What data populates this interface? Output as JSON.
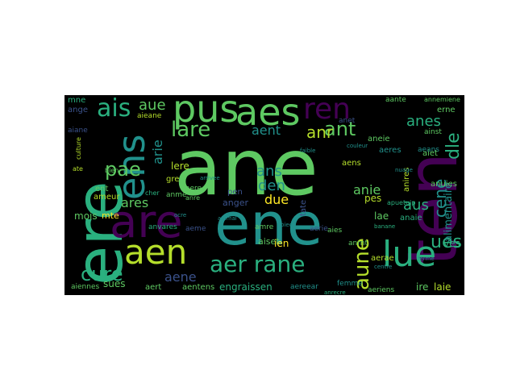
{
  "wordcloud": {
    "background": "#000000",
    "palette": [
      "#440154",
      "#3b528b",
      "#21918c",
      "#2ab07f",
      "#5ec962",
      "#b5de2b",
      "#fde725"
    ],
    "words": [
      {
        "text": "ane",
        "color": "#5ec962",
        "vertical": false
      },
      {
        "text": "ene",
        "color": "#21918c",
        "vertical": false
      },
      {
        "text": "ten",
        "color": "#440154",
        "vertical": true
      },
      {
        "text": "ere",
        "color": "#2ab07f",
        "vertical": true
      },
      {
        "text": "are",
        "color": "#440154",
        "vertical": false
      },
      {
        "text": "aes",
        "color": "#5ec962",
        "vertical": false
      },
      {
        "text": "pus",
        "color": "#5ec962",
        "vertical": false
      },
      {
        "text": "ren",
        "color": "#440154",
        "vertical": false
      },
      {
        "text": "lue",
        "color": "#2ab07f",
        "vertical": false
      },
      {
        "text": "aen",
        "color": "#b5de2b",
        "vertical": false
      },
      {
        "text": "ens",
        "color": "#21918c",
        "vertical": true
      },
      {
        "text": "ais",
        "color": "#2ab07f",
        "vertical": false
      },
      {
        "text": "aer rane",
        "color": "#2ab07f",
        "vertical": false
      },
      {
        "text": "lare",
        "color": "#5ec962",
        "vertical": false
      },
      {
        "text": "ant",
        "color": "#5ec962",
        "vertical": false
      },
      {
        "text": "anr",
        "color": "#b5de2b",
        "vertical": false
      },
      {
        "text": "aue",
        "color": "#5ec962",
        "vertical": false
      },
      {
        "text": "aent",
        "color": "#21918c",
        "vertical": false
      },
      {
        "text": "cure",
        "color": "#2ab07f",
        "vertical": false
      },
      {
        "text": "pae",
        "color": "#5ec962",
        "vertical": false
      },
      {
        "text": "ares",
        "color": "#5ec962",
        "vertical": false
      },
      {
        "text": "ues",
        "color": "#2ab07f",
        "vertical": false
      },
      {
        "text": "aune",
        "color": "#b5de2b",
        "vertical": true
      },
      {
        "text": "anes",
        "color": "#2ab07f",
        "vertical": false
      },
      {
        "text": "aus",
        "color": "#2ab07f",
        "vertical": false
      },
      {
        "text": "dle",
        "color": "#2ab07f",
        "vertical": true
      },
      {
        "text": "cene",
        "color": "#21918c",
        "vertical": true
      },
      {
        "text": "ans",
        "color": "#21918c",
        "vertical": false
      },
      {
        "text": "den",
        "color": "#21918c",
        "vertical": false
      },
      {
        "text": "due",
        "color": "#fde725",
        "vertical": false
      },
      {
        "text": "anie",
        "color": "#5ec962",
        "vertical": false
      },
      {
        "text": "aene",
        "color": "#3b528b",
        "vertical": false
      },
      {
        "text": "engraissen",
        "color": "#2ab07f",
        "vertical": false
      },
      {
        "text": "aentens",
        "color": "#5ec962",
        "vertical": false
      },
      {
        "text": "sues",
        "color": "#5ec962",
        "vertical": false
      },
      {
        "text": "mois",
        "color": "#5ec962",
        "vertical": false
      },
      {
        "text": "mte",
        "color": "#fde725",
        "vertical": false
      },
      {
        "text": "ent",
        "color": "#5ec962",
        "vertical": false
      },
      {
        "text": "ameur",
        "color": "#b5de2b",
        "vertical": false
      },
      {
        "text": "aiennes",
        "color": "#5ec962",
        "vertical": false
      },
      {
        "text": "arie",
        "color": "#21918c",
        "vertical": true
      },
      {
        "text": "lere",
        "color": "#b5de2b",
        "vertical": false
      },
      {
        "text": "anger",
        "color": "#3b528b",
        "vertical": false
      },
      {
        "text": "pen",
        "color": "#3b528b",
        "vertical": false
      },
      {
        "text": "aiset",
        "color": "#5ec962",
        "vertical": false
      },
      {
        "text": "ien",
        "color": "#fde725",
        "vertical": false
      },
      {
        "text": "pes",
        "color": "#b5de2b",
        "vertical": false
      },
      {
        "text": "lae",
        "color": "#5ec962",
        "vertical": false
      },
      {
        "text": "aerae",
        "color": "#b5de2b",
        "vertical": false
      },
      {
        "text": "ire",
        "color": "#5ec962",
        "vertical": false
      },
      {
        "text": "laie",
        "color": "#b5de2b",
        "vertical": false
      },
      {
        "text": "ves",
        "color": "#2ab07f",
        "vertical": false
      },
      {
        "text": "anaie",
        "color": "#2ab07f",
        "vertical": false
      },
      {
        "text": "aeriens",
        "color": "#5ec962",
        "vertical": false
      },
      {
        "text": "aert",
        "color": "#5ec962",
        "vertical": false
      },
      {
        "text": "aeans",
        "color": "#21918c",
        "vertical": false
      },
      {
        "text": "aeres",
        "color": "#21918c",
        "vertical": false
      },
      {
        "text": "aneie",
        "color": "#5ec962",
        "vertical": false
      },
      {
        "text": "aens",
        "color": "#b5de2b",
        "vertical": false
      },
      {
        "text": "alimentaire",
        "color": "#21918c",
        "vertical": true
      },
      {
        "text": "anuies",
        "color": "#5ec962",
        "vertical": false
      },
      {
        "text": "aiet",
        "color": "#5ec962",
        "vertical": false
      },
      {
        "text": "ainst",
        "color": "#5ec962",
        "vertical": false
      },
      {
        "text": "anet",
        "color": "#3b528b",
        "vertical": false
      },
      {
        "text": "erne",
        "color": "#5ec962",
        "vertical": false
      },
      {
        "text": "aante",
        "color": "#5ec962",
        "vertical": false
      },
      {
        "text": "annemiene",
        "color": "#5ec962",
        "vertical": false
      },
      {
        "text": "mne",
        "color": "#2ab07f",
        "vertical": false
      },
      {
        "text": "ange",
        "color": "#3b528b",
        "vertical": false
      },
      {
        "text": "aiane",
        "color": "#3b528b",
        "vertical": false
      },
      {
        "text": "aieane",
        "color": "#b5de2b",
        "vertical": false
      },
      {
        "text": "bien",
        "color": "#5ec962",
        "vertical": false
      },
      {
        "text": "ate",
        "color": "#b5de2b",
        "vertical": false
      },
      {
        "text": "anvares",
        "color": "#2ab07f",
        "vertical": false
      },
      {
        "text": "cher",
        "color": "#2ab07f",
        "vertical": false
      },
      {
        "text": "aere",
        "color": "#5ec962",
        "vertical": false
      },
      {
        "text": "anre",
        "color": "#5ec962",
        "vertical": false
      },
      {
        "text": "anme",
        "color": "#5ec962",
        "vertical": false
      },
      {
        "text": "gre",
        "color": "#b5de2b",
        "vertical": false
      },
      {
        "text": "aeme",
        "color": "#3b528b",
        "vertical": false
      },
      {
        "text": "anrnt",
        "color": "#5ec962",
        "vertical": false
      },
      {
        "text": "aies",
        "color": "#5ec962",
        "vertical": false
      },
      {
        "text": "amre",
        "color": "#5ec962",
        "vertical": false
      },
      {
        "text": "aereear",
        "color": "#21918c",
        "vertical": false
      },
      {
        "text": "aerie",
        "color": "#3b528b",
        "vertical": false
      },
      {
        "text": "tate",
        "color": "#3b528b",
        "vertical": true
      },
      {
        "text": "anires",
        "color": "#b5de2b",
        "vertical": true
      },
      {
        "text": "apuetuip",
        "color": "#2ab07f",
        "vertical": false
      },
      {
        "text": "culture",
        "color": "#b5de2b",
        "vertical": true
      },
      {
        "text": "femme",
        "color": "#21918c",
        "vertical": false
      },
      {
        "text": "anrecre",
        "color": "#2ab07f",
        "vertical": false
      },
      {
        "text": "couleur",
        "color": "#21918c",
        "vertical": false
      },
      {
        "text": "arrivee",
        "color": "#21918c",
        "vertical": false
      },
      {
        "text": "banane",
        "color": "#2ab07f",
        "vertical": false
      },
      {
        "text": "centre",
        "color": "#21918c",
        "vertical": false
      },
      {
        "text": "faible",
        "color": "#21918c",
        "vertical": false
      },
      {
        "text": "pied",
        "color": "#21918c",
        "vertical": false
      },
      {
        "text": "nuage",
        "color": "#21918c",
        "vertical": false
      },
      {
        "text": "animal",
        "color": "#21918c",
        "vertical": false
      },
      {
        "text": "ocre",
        "color": "#21918c",
        "vertical": false
      },
      {
        "text": "ferme",
        "color": "#21918c",
        "vertical": false
      }
    ]
  }
}
